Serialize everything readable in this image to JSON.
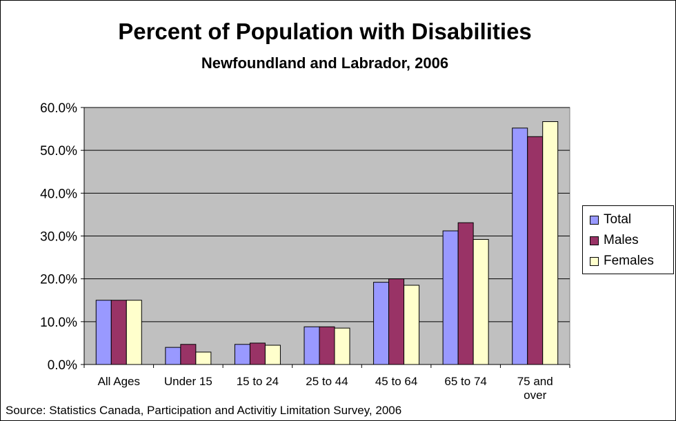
{
  "chart_data": {
    "type": "bar",
    "title": "Percent of Population with Disabilities",
    "subtitle": "Newfoundland and Labrador, 2006",
    "categories": [
      "All Ages",
      "Under 15",
      "15 to 24",
      "25 to 44",
      "45 to 64",
      "65 to 74",
      "75 and over"
    ],
    "series": [
      {
        "name": "Total",
        "color": "#9999FF",
        "values": [
          15.0,
          4.0,
          4.7,
          8.8,
          19.2,
          31.2,
          55.2
        ]
      },
      {
        "name": "Males",
        "color": "#993366",
        "values": [
          15.0,
          4.7,
          5.0,
          8.8,
          20.0,
          33.1,
          53.2
        ]
      },
      {
        "name": "Females",
        "color": "#FFFFCC",
        "values": [
          15.0,
          2.9,
          4.5,
          8.5,
          18.5,
          29.2,
          56.7
        ]
      }
    ],
    "ylim": [
      0,
      60
    ],
    "yticks": [
      "0.0%",
      "10.0%",
      "20.0%",
      "30.0%",
      "40.0%",
      "50.0%",
      "60.0%"
    ],
    "grid": true,
    "plot_background": "#C0C0C0",
    "legend_position": "right",
    "source": "Source: Statistics Canada, Participation and Activitiy Limitation Survey, 2006"
  }
}
